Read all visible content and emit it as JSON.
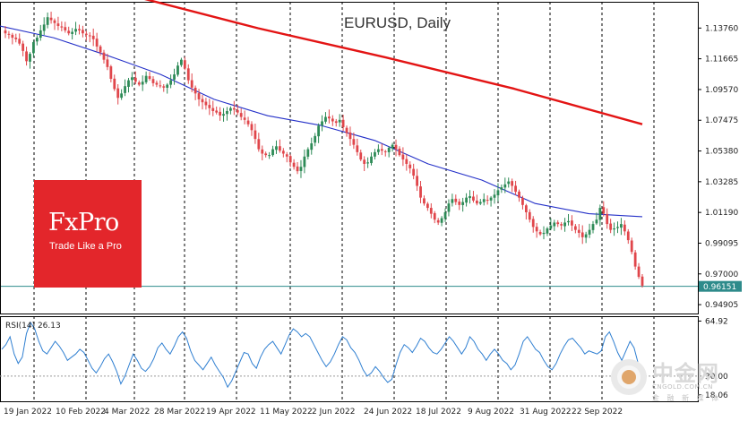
{
  "chart_data": [
    {
      "type": "candlestick",
      "title": "EURUSD, Daily",
      "x_tick_labels": [
        "19 Jan 2022",
        "10 Feb 2022",
        "4 Mar 2022",
        "28 Mar 2022",
        "19 Apr 2022",
        "11 May 2022",
        "2 Jun 2022",
        "24 Jun 2022",
        "18 Jul 2022",
        "9 Aug 2022",
        "31 Aug 2022",
        "22 Sep 2022"
      ],
      "y_tick_labels": [
        "1.13760",
        "1.11665",
        "1.09570",
        "1.07475",
        "1.05380",
        "1.03285",
        "1.01190",
        "0.99095",
        "0.97000",
        "0.94905"
      ],
      "ylim": [
        0.943,
        1.1555
      ],
      "grid": "vertical dashed at x ticks",
      "current_price": {
        "value": 0.96151,
        "label": "0.96151",
        "color": "#2e8b8b"
      },
      "close_series": [
        1.134,
        1.133,
        1.131,
        1.13,
        1.127,
        1.122,
        1.115,
        1.12,
        1.128,
        1.131,
        1.136,
        1.14,
        1.145,
        1.143,
        1.141,
        1.139,
        1.138,
        1.136,
        1.134,
        1.135,
        1.137,
        1.136,
        1.134,
        1.133,
        1.132,
        1.13,
        1.125,
        1.121,
        1.116,
        1.111,
        1.103,
        1.096,
        1.09,
        1.093,
        1.098,
        1.102,
        1.104,
        1.101,
        1.099,
        1.101,
        1.105,
        1.103,
        1.1,
        1.099,
        1.098,
        1.097,
        1.099,
        1.102,
        1.106,
        1.112,
        1.116,
        1.11,
        1.102,
        1.097,
        1.093,
        1.089,
        1.087,
        1.085,
        1.083,
        1.081,
        1.08,
        1.078,
        1.079,
        1.081,
        1.083,
        1.082,
        1.08,
        1.077,
        1.075,
        1.072,
        1.068,
        1.062,
        1.055,
        1.052,
        1.051,
        1.051,
        1.055,
        1.057,
        1.054,
        1.052,
        1.05,
        1.046,
        1.043,
        1.04,
        1.043,
        1.05,
        1.055,
        1.059,
        1.064,
        1.071,
        1.074,
        1.077,
        1.076,
        1.074,
        1.073,
        1.075,
        1.07,
        1.066,
        1.062,
        1.058,
        1.053,
        1.048,
        1.045,
        1.046,
        1.05,
        1.053,
        1.055,
        1.054,
        1.053,
        1.056,
        1.058,
        1.055,
        1.051,
        1.048,
        1.045,
        1.042,
        1.037,
        1.03,
        1.022,
        1.018,
        1.015,
        1.011,
        1.007,
        1.005,
        1.008,
        1.012,
        1.018,
        1.021,
        1.019,
        1.017,
        1.019,
        1.022,
        1.023,
        1.02,
        1.018,
        1.019,
        1.021,
        1.02,
        1.022,
        1.024,
        1.027,
        1.029,
        1.031,
        1.033,
        1.03,
        1.026,
        1.022,
        1.017,
        1.012,
        1.007,
        1.002,
        0.999,
        0.997,
        0.998,
        1.001,
        1.003,
        1.005,
        1.004,
        1.003,
        1.005,
        1.006,
        1.003,
        1.0,
        0.998,
        0.995,
        0.997,
        1.0,
        1.004,
        1.007,
        1.015,
        1.011,
        1.004,
        1.0,
        1.001,
        1.002,
        1.004,
        0.999,
        0.993,
        0.985,
        0.975,
        0.968,
        0.962
      ],
      "series": [
        {
          "name": "MA200",
          "color": "#e31414",
          "values": [
            1.16,
            1.1375,
            1.1175,
            1.0962,
            1.072
          ]
        },
        {
          "name": "MA50",
          "color": "#2430c8",
          "values": [
            1.139,
            1.131,
            1.119,
            1.106,
            1.089,
            1.0778,
            1.0712,
            1.061,
            1.045,
            1.034,
            1.018,
            1.011,
            1.009
          ]
        }
      ],
      "bull_color": "#2e8b57",
      "bear_color": "#e0464b"
    },
    {
      "type": "line",
      "title": "RSI(14) 26.13",
      "y_tick_labels": [
        "64.92",
        "30.00",
        "18.06"
      ],
      "ylim": [
        14.0,
        68.0
      ],
      "levels": [
        30
      ],
      "series": [
        {
          "name": "RSI(14)",
          "color": "#2f7fd1",
          "values": [
            47,
            50,
            55,
            44,
            38,
            42,
            57,
            64,
            60,
            52,
            46,
            44,
            48,
            52,
            49,
            45,
            40,
            42,
            44,
            47,
            45,
            40,
            35,
            32,
            36,
            41,
            44,
            39,
            33,
            25,
            30,
            37,
            44,
            40,
            35,
            33,
            36,
            41,
            48,
            51,
            47,
            44,
            49,
            55,
            58,
            54,
            46,
            40,
            37,
            34,
            38,
            42,
            37,
            33,
            29,
            23,
            27,
            33,
            39,
            45,
            44,
            38,
            35,
            42,
            47,
            50,
            52,
            48,
            44,
            50,
            56,
            60,
            58,
            55,
            57,
            55,
            50,
            45,
            40,
            36,
            39,
            44,
            50,
            55,
            53,
            48,
            45,
            40,
            34,
            30,
            32,
            36,
            33,
            29,
            26,
            28,
            37,
            45,
            50,
            48,
            45,
            49,
            54,
            52,
            48,
            45,
            44,
            47,
            51,
            55,
            52,
            48,
            44,
            48,
            55,
            52,
            47,
            44,
            40,
            44,
            47,
            44,
            40,
            38,
            34,
            37,
            44,
            52,
            55,
            51,
            47,
            45,
            40,
            36,
            34,
            38,
            44,
            49,
            53,
            54,
            51,
            48,
            44,
            46,
            45,
            44,
            46,
            55,
            58,
            52,
            45,
            40,
            46,
            52,
            48,
            38,
            26
          ]
        }
      ]
    }
  ],
  "branding": {
    "name": "FxPro",
    "tagline": "Trade Like a Pro",
    "watermark_cn": "中金网",
    "watermark_domain": "CNGOLD.COM.CN",
    "watermark_sub": "金 融 新 媒 体"
  }
}
